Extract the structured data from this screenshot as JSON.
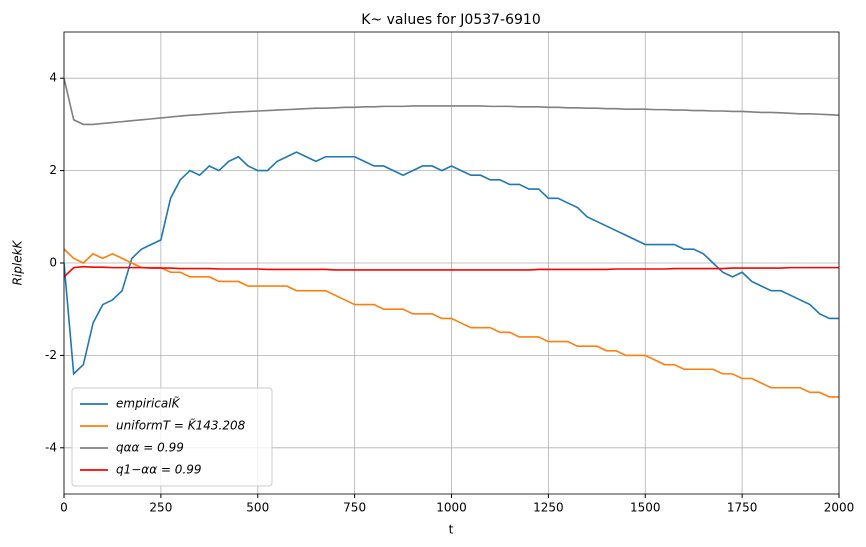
{
  "chart_data": {
    "type": "line",
    "title": "K~ values for J0537-6910",
    "x_label": "t",
    "y_label": "RiplekK",
    "x": [
      0,
      25,
      50,
      75,
      100,
      125,
      150,
      175,
      200,
      225,
      250,
      275,
      300,
      325,
      350,
      375,
      400,
      425,
      450,
      475,
      500,
      525,
      550,
      575,
      600,
      625,
      650,
      675,
      700,
      725,
      750,
      775,
      800,
      825,
      850,
      875,
      900,
      925,
      950,
      975,
      1000,
      1025,
      1050,
      1075,
      1100,
      1125,
      1150,
      1175,
      1200,
      1225,
      1250,
      1275,
      1300,
      1325,
      1350,
      1375,
      1400,
      1425,
      1450,
      1475,
      1500,
      1525,
      1550,
      1575,
      1600,
      1625,
      1650,
      1675,
      1700,
      1725,
      1750,
      1775,
      1800,
      1825,
      1850,
      1875,
      1900,
      1925,
      1950,
      1975,
      2000
    ],
    "series": [
      {
        "name": "empiricalK̃",
        "color": "#1f77b4",
        "values": [
          0,
          -2.4,
          -2.2,
          -1.3,
          -0.9,
          -0.8,
          -0.6,
          0.1,
          0.3,
          0.4,
          0.5,
          1.4,
          1.8,
          2.0,
          1.9,
          2.1,
          2.0,
          2.2,
          2.3,
          2.1,
          2.0,
          2.0,
          2.2,
          2.3,
          2.4,
          2.3,
          2.2,
          2.3,
          2.3,
          2.3,
          2.3,
          2.2,
          2.1,
          2.1,
          2.0,
          1.9,
          2.0,
          2.1,
          2.1,
          2.0,
          2.1,
          2.0,
          1.9,
          1.9,
          1.8,
          1.8,
          1.7,
          1.7,
          1.6,
          1.6,
          1.4,
          1.4,
          1.3,
          1.2,
          1.0,
          0.9,
          0.8,
          0.7,
          0.6,
          0.5,
          0.4,
          0.4,
          0.4,
          0.4,
          0.3,
          0.3,
          0.2,
          0.0,
          -0.2,
          -0.3,
          -0.2,
          -0.4,
          -0.5,
          -0.6,
          -0.6,
          -0.7,
          -0.8,
          -0.9,
          -1.1,
          -1.2,
          -1.2
        ]
      },
      {
        "name": "uniformT = K̃143.208",
        "color": "#ff7f0e",
        "values": [
          0.3,
          0.1,
          0.0,
          0.2,
          0.1,
          0.2,
          0.1,
          0.0,
          -0.1,
          -0.1,
          -0.1,
          -0.2,
          -0.2,
          -0.3,
          -0.3,
          -0.3,
          -0.4,
          -0.4,
          -0.4,
          -0.5,
          -0.5,
          -0.5,
          -0.5,
          -0.5,
          -0.6,
          -0.6,
          -0.6,
          -0.6,
          -0.7,
          -0.8,
          -0.9,
          -0.9,
          -0.9,
          -1.0,
          -1.0,
          -1.0,
          -1.1,
          -1.1,
          -1.1,
          -1.2,
          -1.2,
          -1.3,
          -1.4,
          -1.4,
          -1.4,
          -1.5,
          -1.5,
          -1.6,
          -1.6,
          -1.6,
          -1.7,
          -1.7,
          -1.7,
          -1.8,
          -1.8,
          -1.8,
          -1.9,
          -1.9,
          -2.0,
          -2.0,
          -2.0,
          -2.1,
          -2.2,
          -2.2,
          -2.3,
          -2.3,
          -2.3,
          -2.3,
          -2.4,
          -2.4,
          -2.5,
          -2.5,
          -2.6,
          -2.7,
          -2.7,
          -2.7,
          -2.7,
          -2.8,
          -2.8,
          -2.9,
          -2.9
        ]
      },
      {
        "name": "qαα = 0.99",
        "color": "#808080",
        "values": [
          4.0,
          3.1,
          3.0,
          3.0,
          3.02,
          3.04,
          3.06,
          3.08,
          3.1,
          3.12,
          3.14,
          3.16,
          3.18,
          3.2,
          3.21,
          3.23,
          3.24,
          3.26,
          3.27,
          3.28,
          3.29,
          3.3,
          3.31,
          3.32,
          3.33,
          3.34,
          3.35,
          3.35,
          3.36,
          3.37,
          3.37,
          3.38,
          3.38,
          3.39,
          3.39,
          3.39,
          3.4,
          3.4,
          3.4,
          3.4,
          3.4,
          3.4,
          3.4,
          3.4,
          3.39,
          3.39,
          3.39,
          3.38,
          3.38,
          3.38,
          3.37,
          3.37,
          3.36,
          3.36,
          3.35,
          3.35,
          3.34,
          3.34,
          3.33,
          3.33,
          3.33,
          3.32,
          3.32,
          3.31,
          3.31,
          3.3,
          3.3,
          3.29,
          3.29,
          3.28,
          3.28,
          3.27,
          3.26,
          3.26,
          3.25,
          3.24,
          3.23,
          3.23,
          3.22,
          3.21,
          3.2
        ]
      },
      {
        "name": "q1−αα = 0.99",
        "color": "#ff0000",
        "values": [
          -0.3,
          -0.1,
          -0.08,
          -0.09,
          -0.09,
          -0.1,
          -0.1,
          -0.1,
          -0.1,
          -0.11,
          -0.11,
          -0.11,
          -0.12,
          -0.12,
          -0.12,
          -0.12,
          -0.13,
          -0.13,
          -0.13,
          -0.13,
          -0.13,
          -0.14,
          -0.14,
          -0.14,
          -0.14,
          -0.14,
          -0.14,
          -0.14,
          -0.15,
          -0.15,
          -0.15,
          -0.15,
          -0.15,
          -0.15,
          -0.15,
          -0.15,
          -0.15,
          -0.15,
          -0.15,
          -0.15,
          -0.15,
          -0.15,
          -0.15,
          -0.15,
          -0.15,
          -0.15,
          -0.15,
          -0.15,
          -0.15,
          -0.14,
          -0.14,
          -0.14,
          -0.14,
          -0.14,
          -0.14,
          -0.14,
          -0.14,
          -0.13,
          -0.13,
          -0.13,
          -0.13,
          -0.13,
          -0.13,
          -0.12,
          -0.12,
          -0.12,
          -0.12,
          -0.12,
          -0.12,
          -0.11,
          -0.11,
          -0.11,
          -0.11,
          -0.11,
          -0.11,
          -0.1,
          -0.1,
          -0.1,
          -0.1,
          -0.1,
          -0.1
        ]
      }
    ],
    "xlim": [
      0,
      2000
    ],
    "ylim": [
      -5,
      5
    ],
    "xticks": [
      0,
      250,
      500,
      750,
      1000,
      1250,
      1500,
      1750,
      2000
    ],
    "yticks": [
      -4,
      -2,
      0,
      2,
      4
    ],
    "grid": true,
    "legend": "lower left"
  }
}
